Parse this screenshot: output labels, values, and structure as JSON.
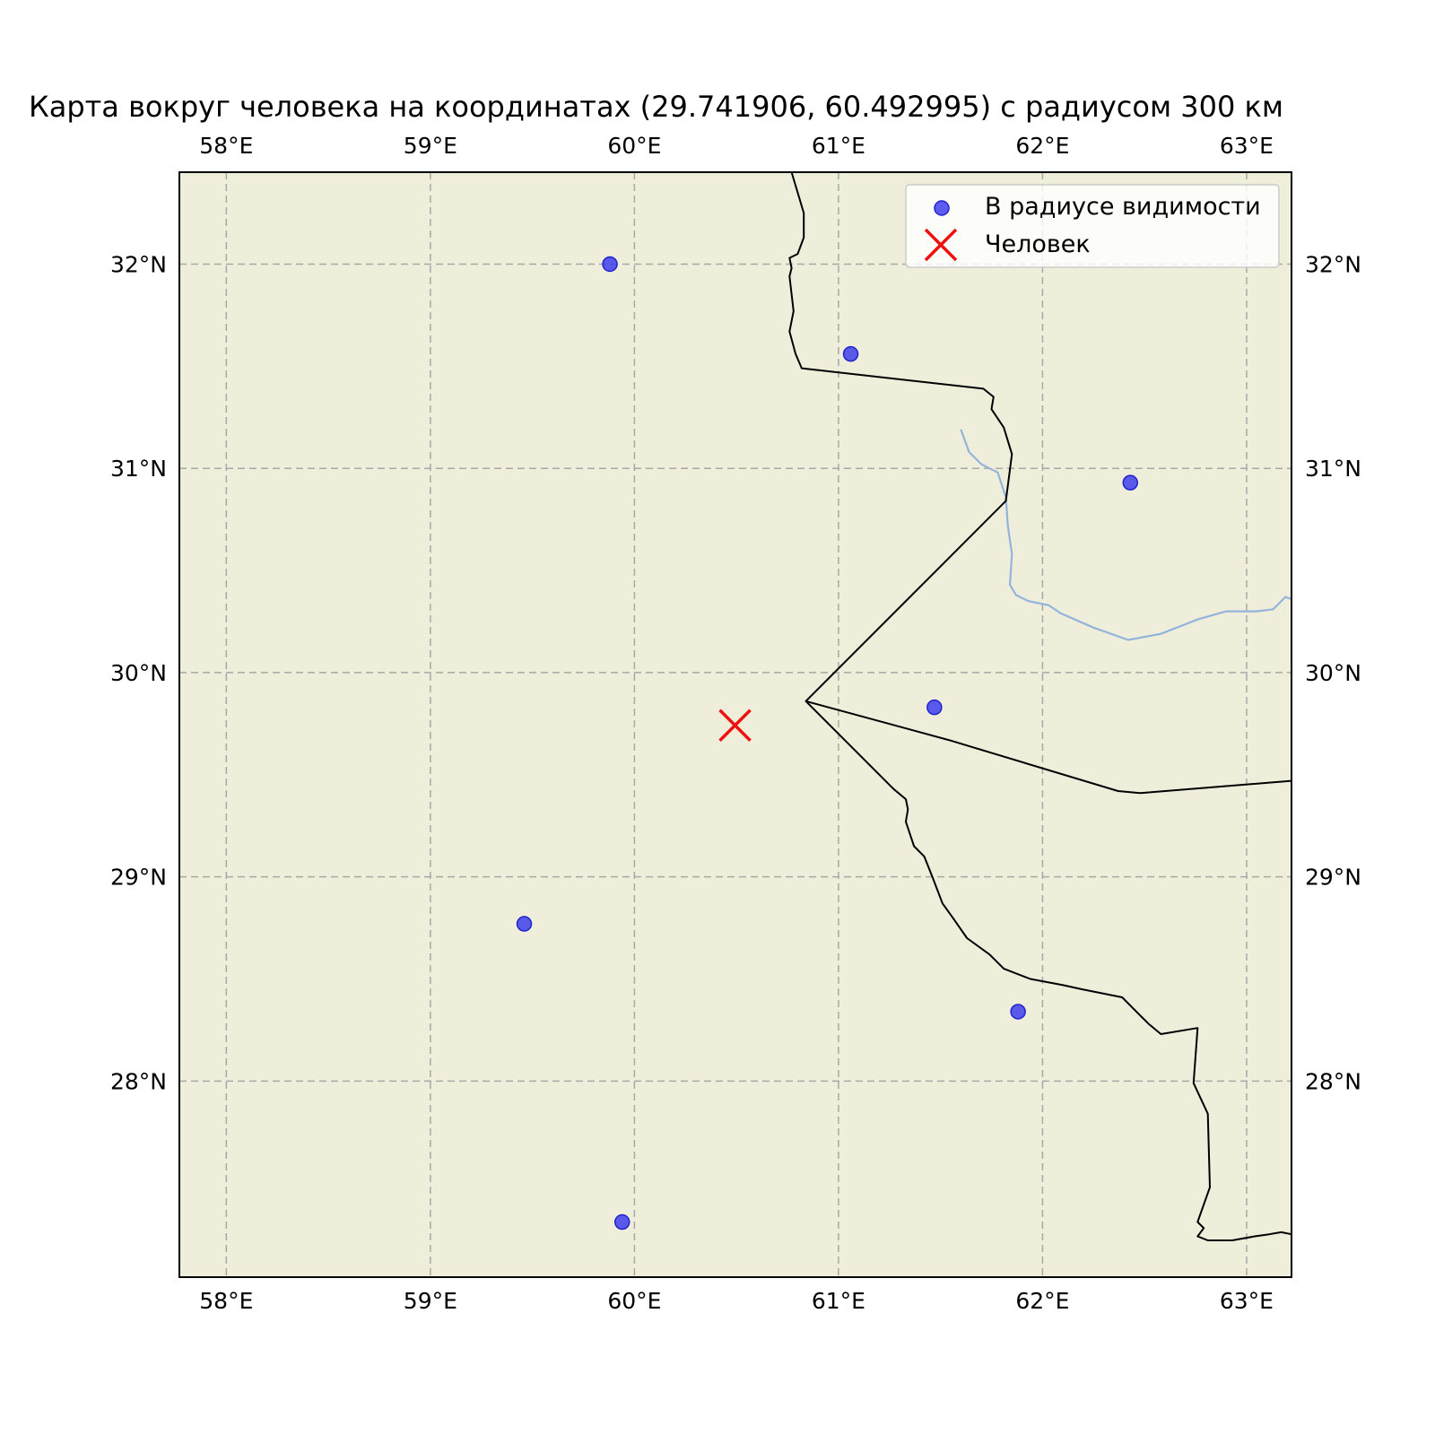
{
  "title": "Карта вокруг человека на координатах (29.741906, 60.492995) с радиусом 300 км",
  "chart_data": {
    "type": "scatter",
    "title": "Карта вокруг человека на координатах (29.741906, 60.492995) с радиусом 300 км",
    "xlim": [
      57.77,
      63.22
    ],
    "ylim": [
      27.04,
      32.45
    ],
    "x_ticks": [
      58,
      59,
      60,
      61,
      62,
      63
    ],
    "y_ticks": [
      28,
      29,
      30,
      31,
      32
    ],
    "x_tick_labels": [
      "58°E",
      "59°E",
      "60°E",
      "61°E",
      "62°E",
      "63°E"
    ],
    "y_tick_labels": [
      "28°N",
      "29°N",
      "30°N",
      "31°N",
      "32°N"
    ],
    "grid": true,
    "legend_position": "top-right",
    "series": [
      {
        "name": "В радиусе видимости",
        "marker": "circle",
        "color": "#3333ee",
        "points": [
          [
            59.88,
            32.0
          ],
          [
            61.06,
            31.56
          ],
          [
            62.43,
            30.93
          ],
          [
            61.47,
            29.83
          ],
          [
            59.46,
            28.77
          ],
          [
            61.88,
            28.34
          ],
          [
            59.94,
            27.31
          ]
        ]
      },
      {
        "name": "Человек",
        "marker": "x",
        "color": "#ee1111",
        "points": [
          [
            60.492995,
            29.741906
          ]
        ]
      }
    ],
    "borders": [
      [
        [
          60.77,
          32.45
        ],
        [
          60.83,
          32.25
        ],
        [
          60.83,
          32.13
        ],
        [
          60.8,
          32.05
        ],
        [
          60.76,
          32.03
        ],
        [
          60.77,
          31.98
        ],
        [
          60.76,
          31.94
        ],
        [
          60.78,
          31.77
        ],
        [
          60.76,
          31.67
        ],
        [
          60.79,
          31.56
        ],
        [
          60.82,
          31.49
        ],
        [
          61.71,
          31.39
        ],
        [
          61.76,
          31.35
        ],
        [
          61.75,
          31.29
        ],
        [
          61.81,
          31.2
        ],
        [
          61.85,
          31.07
        ],
        [
          61.82,
          30.84
        ],
        [
          60.84,
          29.86
        ],
        [
          61.27,
          29.43
        ],
        [
          61.33,
          29.38
        ],
        [
          61.34,
          29.33
        ],
        [
          61.33,
          29.27
        ],
        [
          61.37,
          29.15
        ],
        [
          61.42,
          29.1
        ],
        [
          61.46,
          29.0
        ],
        [
          61.51,
          28.87
        ],
        [
          61.56,
          28.8
        ],
        [
          61.63,
          28.7
        ],
        [
          61.74,
          28.62
        ],
        [
          61.81,
          28.55
        ],
        [
          61.94,
          28.5
        ],
        [
          62.1,
          28.47
        ],
        [
          62.19,
          28.45
        ],
        [
          62.39,
          28.41
        ],
        [
          62.45,
          28.35
        ],
        [
          62.52,
          28.28
        ],
        [
          62.58,
          28.23
        ],
        [
          62.76,
          28.26
        ],
        [
          62.74,
          27.99
        ],
        [
          62.81,
          27.84
        ],
        [
          62.82,
          27.48
        ],
        [
          62.76,
          27.31
        ],
        [
          62.79,
          27.28
        ],
        [
          62.76,
          27.24
        ],
        [
          62.81,
          27.22
        ],
        [
          62.93,
          27.22
        ],
        [
          63.04,
          27.24
        ],
        [
          63.11,
          27.25
        ],
        [
          63.17,
          27.26
        ],
        [
          63.22,
          27.25
        ]
      ],
      [
        [
          60.84,
          29.86
        ],
        [
          61.54,
          29.67
        ],
        [
          62.37,
          29.42
        ],
        [
          62.48,
          29.41
        ],
        [
          63.22,
          29.47
        ]
      ]
    ],
    "river": [
      [
        61.6,
        31.19
      ],
      [
        61.64,
        31.08
      ],
      [
        61.7,
        31.02
      ],
      [
        61.78,
        30.98
      ],
      [
        61.82,
        30.86
      ],
      [
        61.83,
        30.72
      ],
      [
        61.85,
        30.58
      ],
      [
        61.84,
        30.43
      ],
      [
        61.87,
        30.38
      ],
      [
        61.93,
        30.35
      ],
      [
        62.03,
        30.33
      ],
      [
        62.09,
        30.29
      ],
      [
        62.25,
        30.22
      ],
      [
        62.42,
        30.16
      ],
      [
        62.58,
        30.19
      ],
      [
        62.76,
        30.26
      ],
      [
        62.9,
        30.3
      ],
      [
        63.05,
        30.3
      ],
      [
        63.13,
        30.31
      ],
      [
        63.19,
        30.37
      ],
      [
        63.22,
        30.36
      ]
    ],
    "colors": {
      "land": "#efeedb",
      "border": "#000000",
      "river": "#94b4dc",
      "grid": "#a8a8a8"
    }
  }
}
